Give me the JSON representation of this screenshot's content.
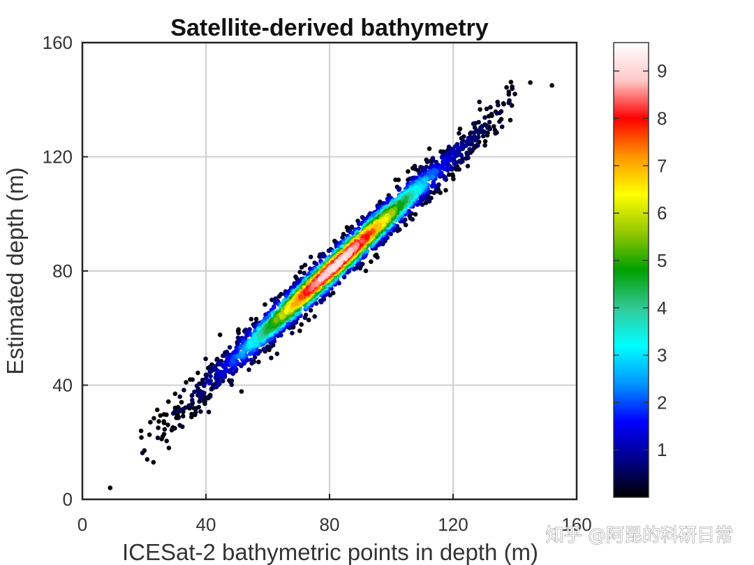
{
  "chart_data": {
    "type": "scatter",
    "title": "Satellite-derived bathymetry",
    "xlabel": "ICESat-2 bathymetric points in depth (m)",
    "ylabel": "Estimated depth (m)",
    "xlim": [
      0,
      160
    ],
    "ylim": [
      0,
      160
    ],
    "xticks": [
      "0",
      "40",
      "80",
      "120",
      "160"
    ],
    "yticks": [
      "0",
      "40",
      "80",
      "120",
      "160"
    ],
    "grid": true,
    "colorbar": {
      "label": "",
      "range": [
        0,
        9.6
      ],
      "ticks": [
        "1",
        "2",
        "3",
        "4",
        "5",
        "6",
        "7",
        "8",
        "9"
      ],
      "colors": [
        "#000000",
        "#00008c",
        "#0000ff",
        "#0096ff",
        "#00ffff",
        "#32c896",
        "#00a000",
        "#96c800",
        "#ffff00",
        "#ff9600",
        "#ff0000",
        "#ffc8c8",
        "#ffffff"
      ]
    },
    "density_band": {
      "description_x_range": [
        8,
        152
      ],
      "relation": "y ≈ x",
      "scatter_sigma_m": 3.5,
      "peak_center_x": 82,
      "peak_density": 9
    },
    "outliers": [
      [
        9,
        4
      ],
      [
        21,
        14
      ],
      [
        23,
        13
      ],
      [
        26,
        22
      ],
      [
        19,
        24
      ],
      [
        22,
        27
      ],
      [
        28,
        18
      ],
      [
        152,
        145
      ],
      [
        145,
        146
      ],
      [
        140,
        142
      ],
      [
        30,
        37
      ]
    ]
  },
  "watermark": "知乎 @阿昆的科研日常"
}
